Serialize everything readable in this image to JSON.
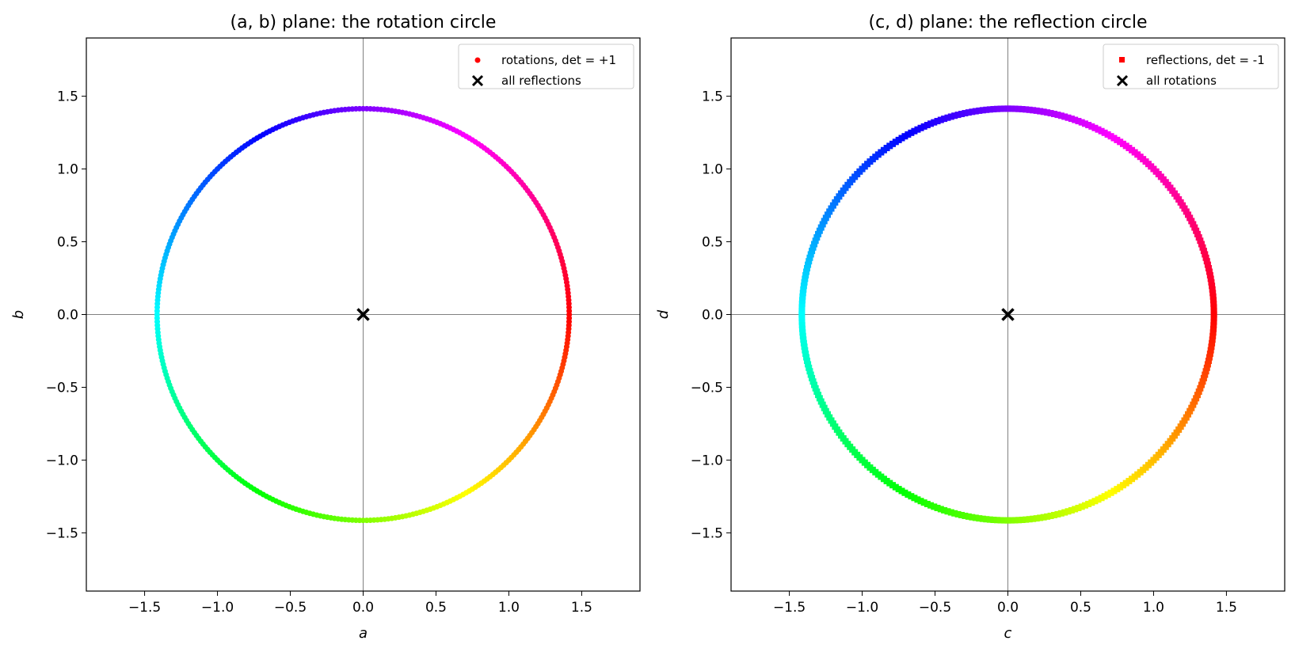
{
  "chart_data": [
    {
      "type": "scatter",
      "title": "(a, b) plane: the rotation circle",
      "xlabel": "a",
      "ylabel": "b",
      "xlim": [
        -1.9,
        1.9
      ],
      "ylim": [
        -1.9,
        1.9
      ],
      "xticks": [
        -1.5,
        -1.0,
        -0.5,
        0.0,
        0.5,
        1.0,
        1.5
      ],
      "yticks": [
        -1.5,
        -1.0,
        -0.5,
        0.0,
        0.5,
        1.0,
        1.5
      ],
      "xtick_labels": [
        "−1.5",
        "−1.0",
        "−0.5",
        "0.0",
        "0.5",
        "1.0",
        "1.5"
      ],
      "ytick_labels": [
        "−1.5",
        "−1.0",
        "−0.5",
        "0.0",
        "0.5",
        "1.0",
        "1.5"
      ],
      "grid": false,
      "reference_lines": {
        "x": 0,
        "y": 0
      },
      "legend_position": "top-right",
      "colormap": "hsv (hue varies with angle around the circle)",
      "series": [
        {
          "name": "rotations, det = +1",
          "marker": "circle",
          "color": "#ff0000",
          "shape": "circle",
          "center": [
            0,
            0
          ],
          "radius": 1.4142,
          "points": 360
        },
        {
          "name": "all reflections",
          "marker": "x",
          "color": "#000000",
          "points_xy": [
            [
              0,
              0
            ]
          ]
        }
      ]
    },
    {
      "type": "scatter",
      "title": "(c, d) plane: the reflection circle",
      "xlabel": "c",
      "ylabel": "d",
      "xlim": [
        -1.9,
        1.9
      ],
      "ylim": [
        -1.9,
        1.9
      ],
      "xticks": [
        -1.5,
        -1.0,
        -0.5,
        0.0,
        0.5,
        1.0,
        1.5
      ],
      "yticks": [
        -1.5,
        -1.0,
        -0.5,
        0.0,
        0.5,
        1.0,
        1.5
      ],
      "xtick_labels": [
        "−1.5",
        "−1.0",
        "−0.5",
        "0.0",
        "0.5",
        "1.0",
        "1.5"
      ],
      "ytick_labels": [
        "−1.5",
        "−1.0",
        "−0.5",
        "0.0",
        "0.5",
        "1.0",
        "1.5"
      ],
      "grid": false,
      "reference_lines": {
        "x": 0,
        "y": 0
      },
      "legend_position": "top-right",
      "colormap": "hsv (hue varies with angle around the circle)",
      "series": [
        {
          "name": "reflections, det = -1",
          "marker": "square",
          "color": "#ff0000",
          "shape": "circle",
          "center": [
            0,
            0
          ],
          "radius": 1.4142,
          "points": 360
        },
        {
          "name": "all rotations",
          "marker": "x",
          "color": "#000000",
          "points_xy": [
            [
              0,
              0
            ]
          ]
        }
      ]
    }
  ]
}
